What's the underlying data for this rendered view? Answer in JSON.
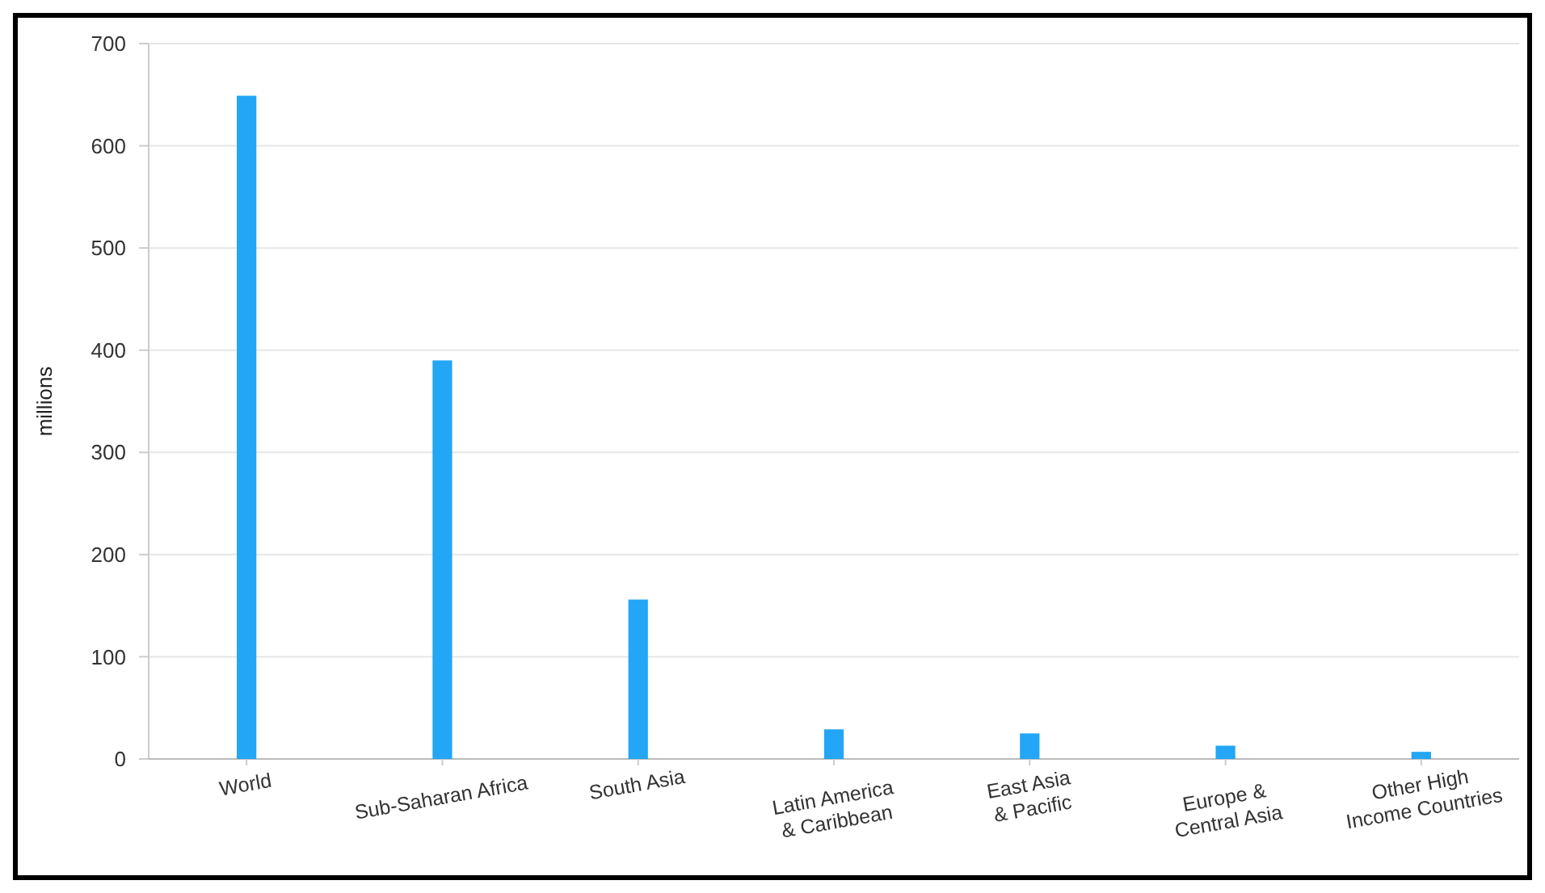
{
  "chart_data": {
    "type": "bar",
    "ylabel": "millions",
    "categories": [
      "World",
      "Sub-Saharan Africa",
      "South Asia",
      "Latin America & Caribbean",
      "East Asia & Pacific",
      "Europe & Central Asia",
      "Other High Income Countries"
    ],
    "values": [
      649,
      390,
      156,
      29,
      25,
      13,
      7
    ],
    "color": "#23a6f5",
    "ylim": [
      0,
      700
    ],
    "yticks": [
      0,
      100,
      200,
      300,
      400,
      500,
      600,
      700
    ],
    "grid": "y"
  }
}
